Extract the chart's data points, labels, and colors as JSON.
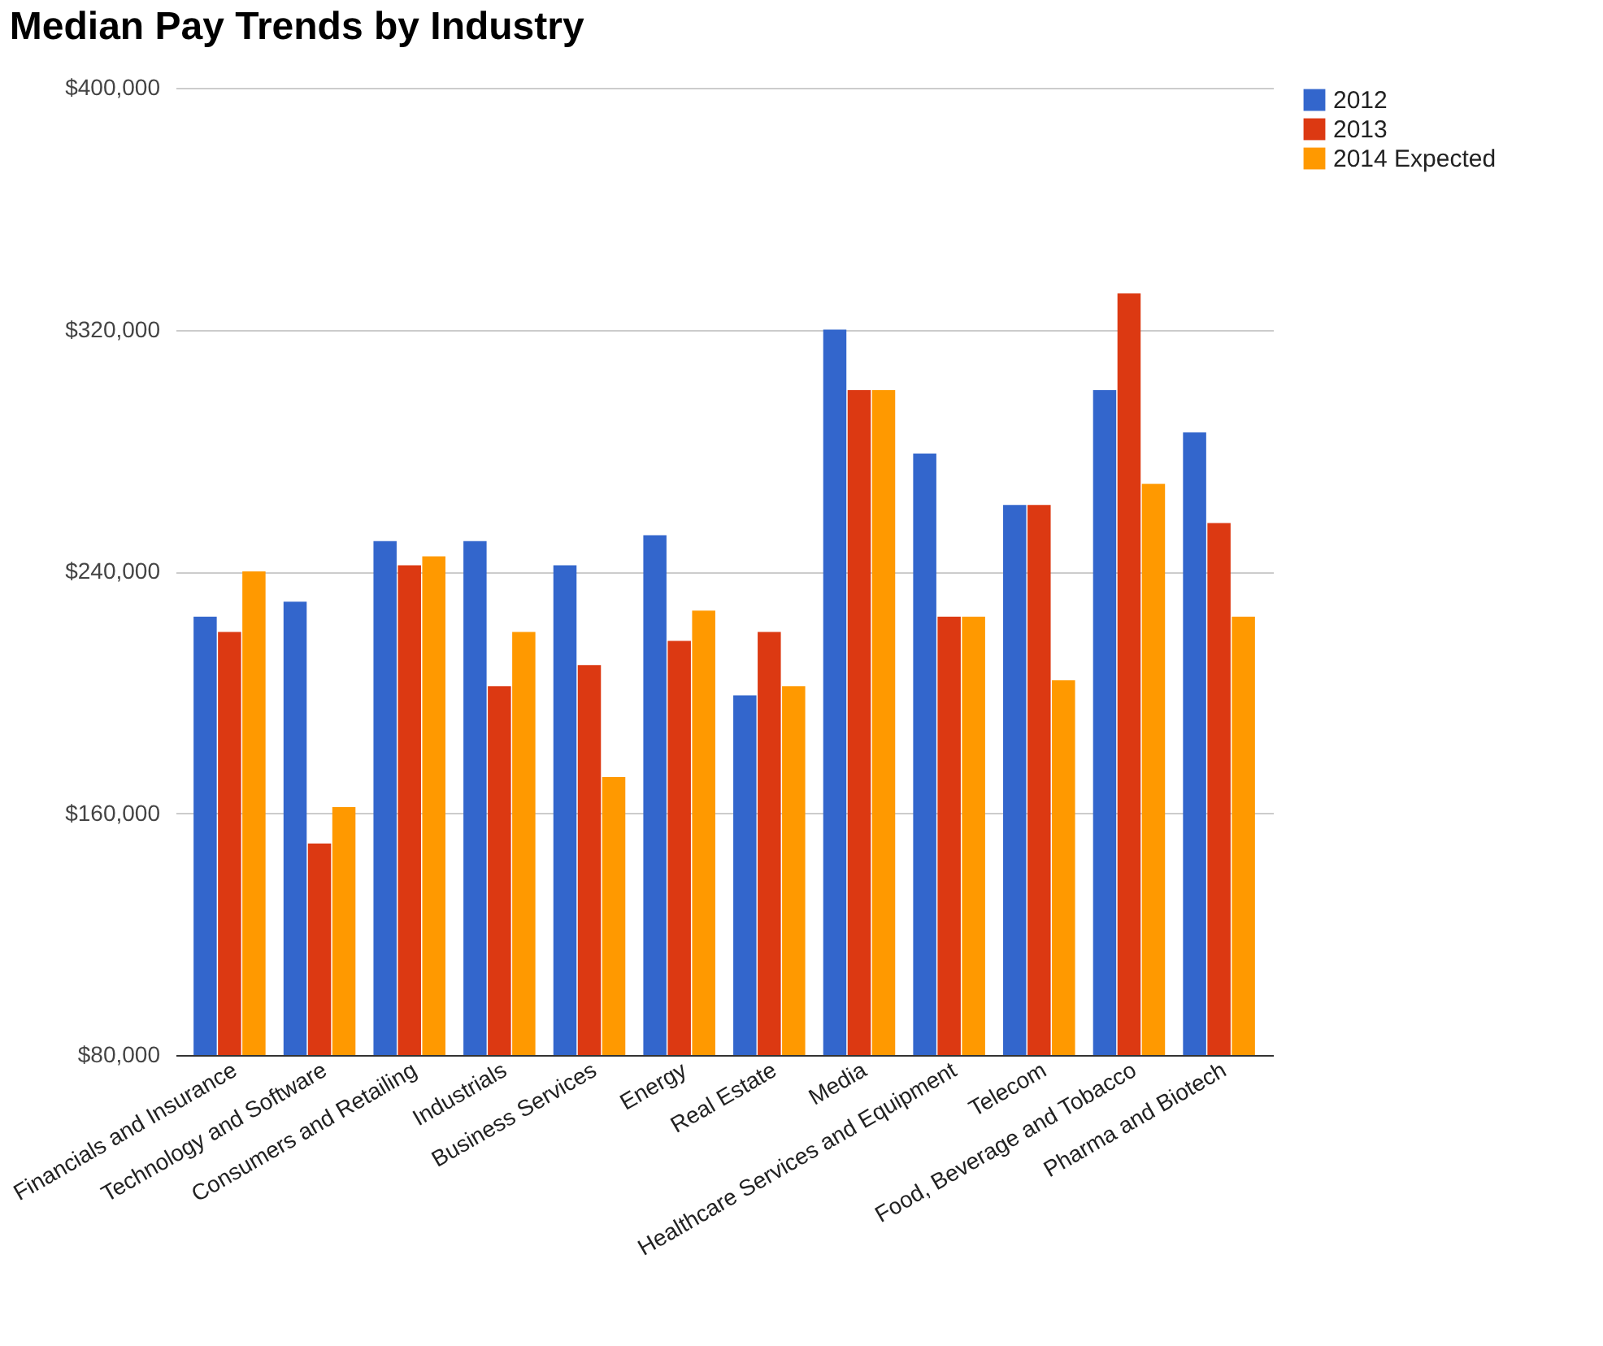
{
  "chart_data": {
    "type": "bar",
    "title": "Median Pay Trends by Industry",
    "categories": [
      "Financials and Insurance",
      "Technology and Software",
      "Consumers and Retailing",
      "Industrials",
      "Business Services",
      "Energy",
      "Real Estate",
      "Media",
      "Healthcare Services and Equipment",
      "Telecom",
      "Food, Beverage and Tobacco",
      "Pharma and Biotech"
    ],
    "series": [
      {
        "name": "2012",
        "color": "#3366cc",
        "values": [
          225000,
          230000,
          250000,
          250000,
          242000,
          252000,
          199000,
          320000,
          279000,
          262000,
          300000,
          286000
        ]
      },
      {
        "name": "2013",
        "color": "#dc3912",
        "values": [
          220000,
          150000,
          242000,
          202000,
          209000,
          217000,
          220000,
          300000,
          225000,
          262000,
          332000,
          256000
        ]
      },
      {
        "name": "2014 Expected",
        "color": "#ff9900",
        "values": [
          240000,
          162000,
          245000,
          220000,
          172000,
          227000,
          202000,
          300000,
          225000,
          204000,
          269000,
          225000
        ]
      }
    ],
    "ylim": [
      80000,
      400000
    ],
    "yticks": [
      {
        "value": 80000,
        "label": "$80,000"
      },
      {
        "value": 160000,
        "label": "$160,000"
      },
      {
        "value": 240000,
        "label": "$240,000"
      },
      {
        "value": 320000,
        "label": "$320,000"
      },
      {
        "value": 400000,
        "label": "$400,000"
      }
    ],
    "grid": "y",
    "legend": "top right"
  }
}
